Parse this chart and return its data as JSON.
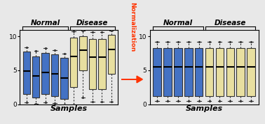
{
  "blue_color": "#4472C4",
  "yellow_color": "#E8DFA0",
  "box_edge_color": "#333333",
  "background_color": "#e8e8e8",
  "arrow_color": "#FF3300",
  "normal_label": "Normal",
  "disease_label": "Disease",
  "samples_label": "Samples",
  "normalization_label": "Normalization",
  "ylim": [
    0,
    11
  ],
  "yticks": [
    0,
    5,
    10
  ],
  "left_blue_boxes": [
    {
      "q1": 1.5,
      "med": 4.9,
      "q3": 7.8,
      "whislo": 0.3,
      "whishi": 8.4
    },
    {
      "q1": 1.0,
      "med": 4.2,
      "q3": 7.1,
      "whislo": 0.1,
      "whishi": 7.9
    },
    {
      "q1": 1.5,
      "med": 4.7,
      "q3": 7.6,
      "whislo": 0.3,
      "whishi": 8.3
    },
    {
      "q1": 1.2,
      "med": 4.5,
      "q3": 7.4,
      "whislo": 0.2,
      "whishi": 8.0
    },
    {
      "q1": 0.8,
      "med": 3.9,
      "q3": 6.9,
      "whislo": 0.0,
      "whishi": 7.5
    }
  ],
  "left_yellow_boxes": [
    {
      "q1": 2.5,
      "med": 7.1,
      "q3": 9.8,
      "whislo": 0.0,
      "whishi": 10.8
    },
    {
      "q1": 5.0,
      "med": 8.0,
      "q3": 10.0,
      "whislo": 1.0,
      "whishi": 10.9
    },
    {
      "q1": 2.2,
      "med": 7.0,
      "q3": 9.6,
      "whislo": 0.4,
      "whishi": 10.7
    },
    {
      "q1": 2.2,
      "med": 7.0,
      "q3": 9.6,
      "whislo": 0.4,
      "whishi": 10.7
    },
    {
      "q1": 4.5,
      "med": 8.1,
      "q3": 10.2,
      "whislo": 0.4,
      "whishi": 10.9
    }
  ],
  "right_blue_boxes": [
    {
      "q1": 1.2,
      "med": 5.5,
      "q3": 8.3,
      "whislo": 0.5,
      "whishi": 9.2
    },
    {
      "q1": 1.2,
      "med": 5.5,
      "q3": 8.3,
      "whislo": 0.5,
      "whishi": 9.2
    },
    {
      "q1": 1.2,
      "med": 5.5,
      "q3": 8.3,
      "whislo": 0.5,
      "whishi": 9.2
    },
    {
      "q1": 1.2,
      "med": 5.5,
      "q3": 8.3,
      "whislo": 0.5,
      "whishi": 9.2
    },
    {
      "q1": 1.2,
      "med": 5.5,
      "q3": 8.3,
      "whislo": 0.5,
      "whishi": 9.2
    }
  ],
  "right_yellow_boxes": [
    {
      "q1": 1.2,
      "med": 5.5,
      "q3": 8.3,
      "whislo": 0.5,
      "whishi": 9.2
    },
    {
      "q1": 1.2,
      "med": 5.5,
      "q3": 8.3,
      "whislo": 0.5,
      "whishi": 9.2
    },
    {
      "q1": 1.2,
      "med": 5.5,
      "q3": 8.3,
      "whislo": 0.5,
      "whishi": 9.2
    },
    {
      "q1": 1.2,
      "med": 5.5,
      "q3": 8.3,
      "whislo": 0.5,
      "whishi": 9.2
    },
    {
      "q1": 1.2,
      "med": 5.5,
      "q3": 8.3,
      "whislo": 0.5,
      "whishi": 9.2
    }
  ],
  "fig_width": 3.78,
  "fig_height": 1.78,
  "dpi": 100
}
